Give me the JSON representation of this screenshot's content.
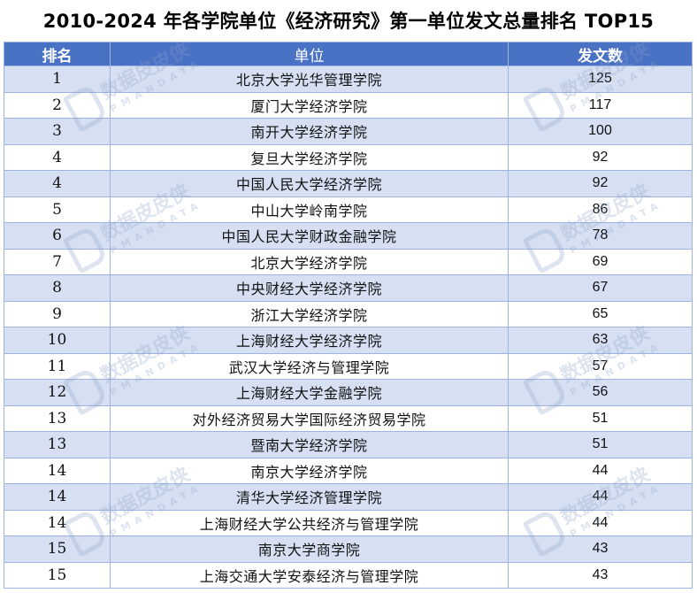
{
  "title": "2010-2024 年各学院单位《经济研究》第一单位发文总量排名 TOP15",
  "table": {
    "headers": [
      "排名",
      "单位",
      "发文数"
    ],
    "rows": [
      {
        "rank": "1",
        "unit": "北京大学光华管理学院",
        "count": "125"
      },
      {
        "rank": "2",
        "unit": "厦门大学经济学院",
        "count": "117"
      },
      {
        "rank": "3",
        "unit": "南开大学经济学院",
        "count": "100"
      },
      {
        "rank": "4",
        "unit": "复旦大学经济学院",
        "count": "92"
      },
      {
        "rank": "4",
        "unit": "中国人民大学经济学院",
        "count": "92"
      },
      {
        "rank": "5",
        "unit": "中山大学岭南学院",
        "count": "86"
      },
      {
        "rank": "6",
        "unit": "中国人民大学财政金融学院",
        "count": "78"
      },
      {
        "rank": "7",
        "unit": "北京大学经济学院",
        "count": "69"
      },
      {
        "rank": "8",
        "unit": "中央财经大学经济学院",
        "count": "67"
      },
      {
        "rank": "9",
        "unit": "浙江大学经济学院",
        "count": "65"
      },
      {
        "rank": "10",
        "unit": "上海财经大学经济学院",
        "count": "63"
      },
      {
        "rank": "11",
        "unit": "武汉大学经济与管理学院",
        "count": "57"
      },
      {
        "rank": "12",
        "unit": "上海财经大学金融学院",
        "count": "56"
      },
      {
        "rank": "13",
        "unit": "对外经济贸易大学国际经济贸易学院",
        "count": "51"
      },
      {
        "rank": "13",
        "unit": "暨南大学经济学院",
        "count": "51"
      },
      {
        "rank": "14",
        "unit": "南京大学经济学院",
        "count": "44"
      },
      {
        "rank": "14",
        "unit": "清华大学经济管理学院",
        "count": "44"
      },
      {
        "rank": "14",
        "unit": "上海财经大学公共经济与管理学院",
        "count": "44"
      },
      {
        "rank": "15",
        "unit": "南京大学商学院",
        "count": "43"
      },
      {
        "rank": "15",
        "unit": "上海交通大学安泰经济与管理学院",
        "count": "43"
      }
    ]
  },
  "watermark": {
    "cn": "数据皮皮侠",
    "en": "PMANDATA"
  },
  "colors": {
    "header_bg": "#4a72c4",
    "stripe_bg": "#d6e0f2",
    "border": "#9db3e0"
  }
}
